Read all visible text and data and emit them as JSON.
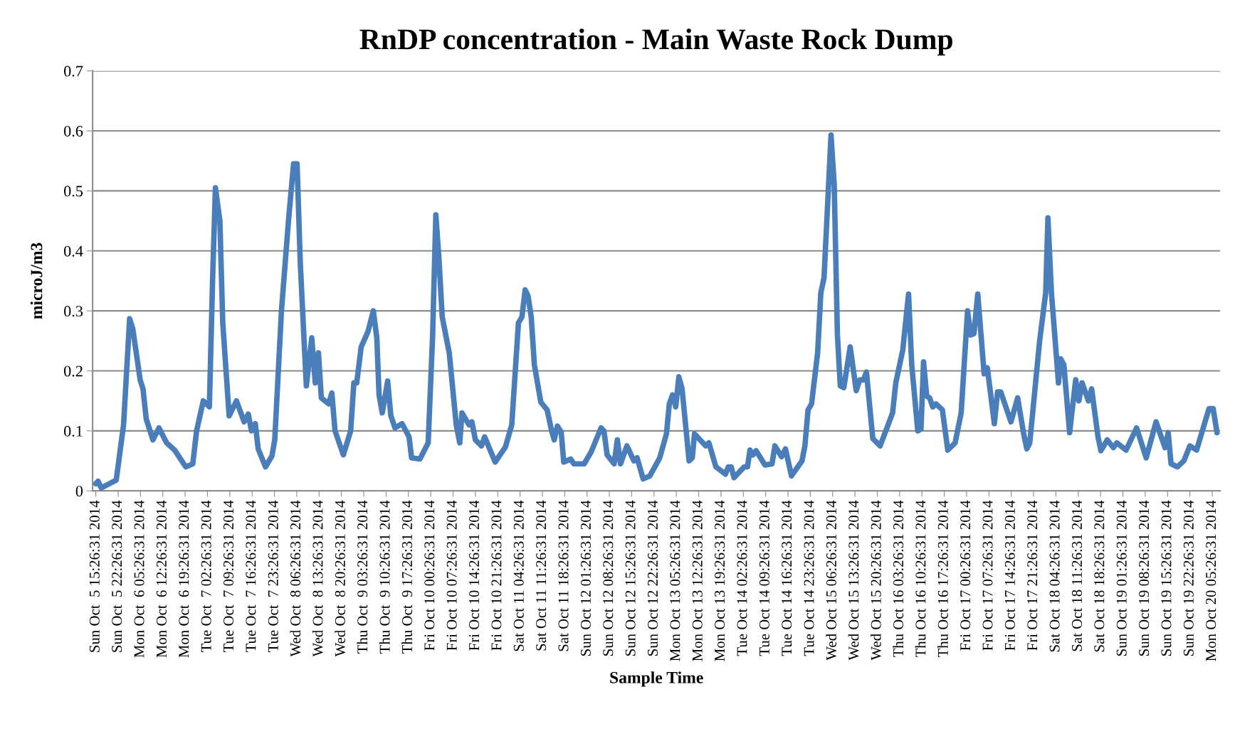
{
  "chart_data": {
    "type": "line",
    "title": "RnDP concentration - Main Waste Rock Dump",
    "xlabel": "Sample Time",
    "ylabel": "microJ/m3",
    "xlim": [
      "2014-10-05T14:26",
      "2014-10-20T07:56"
    ],
    "ylim": [
      0,
      0.7
    ],
    "yticks": [
      0,
      0.1,
      0.2,
      0.3,
      0.4,
      0.5,
      0.6,
      0.7
    ],
    "grid": "y",
    "marker": "none",
    "line_style": "solid",
    "xticks": [
      {
        "value": "2014-10-05T15:26",
        "label": "Sun Oct  5 15:26:31 2014"
      },
      {
        "value": "2014-10-05T22:26",
        "label": "Sun Oct  5 22:26:31 2014"
      },
      {
        "value": "2014-10-06T05:26",
        "label": "Mon Oct  6 05:26:31 2014"
      },
      {
        "value": "2014-10-06T12:26",
        "label": "Mon Oct  6 12:26:31 2014"
      },
      {
        "value": "2014-10-06T19:26",
        "label": "Mon Oct  6 19:26:31 2014"
      },
      {
        "value": "2014-10-07T02:26",
        "label": "Tue Oct  7 02:26:31 2014"
      },
      {
        "value": "2014-10-07T09:26",
        "label": "Tue Oct  7 09:26:31 2014"
      },
      {
        "value": "2014-10-07T16:26",
        "label": "Tue Oct  7 16:26:31 2014"
      },
      {
        "value": "2014-10-07T23:26",
        "label": "Tue Oct  7 23:26:31 2014"
      },
      {
        "value": "2014-10-08T06:26",
        "label": "Wed Oct  8 06:26:31 2014"
      },
      {
        "value": "2014-10-08T13:26",
        "label": "Wed Oct  8 13:26:31 2014"
      },
      {
        "value": "2014-10-08T20:26",
        "label": "Wed Oct  8 20:26:31 2014"
      },
      {
        "value": "2014-10-09T03:26",
        "label": "Thu Oct  9 03:26:31 2014"
      },
      {
        "value": "2014-10-09T10:26",
        "label": "Thu Oct  9 10:26:31 2014"
      },
      {
        "value": "2014-10-09T17:26",
        "label": "Thu Oct  9 17:26:31 2014"
      },
      {
        "value": "2014-10-10T00:26",
        "label": "Fri Oct 10 00:26:31 2014"
      },
      {
        "value": "2014-10-10T07:26",
        "label": "Fri Oct 10 07:26:31 2014"
      },
      {
        "value": "2014-10-10T14:26",
        "label": "Fri Oct 10 14:26:31 2014"
      },
      {
        "value": "2014-10-10T21:26",
        "label": "Fri Oct 10 21:26:31 2014"
      },
      {
        "value": "2014-10-11T04:26",
        "label": "Sat Oct 11 04:26:31 2014"
      },
      {
        "value": "2014-10-11T11:26",
        "label": "Sat Oct 11 11:26:31 2014"
      },
      {
        "value": "2014-10-11T18:26",
        "label": "Sat Oct 11 18:26:31 2014"
      },
      {
        "value": "2014-10-12T01:26",
        "label": "Sun Oct 12 01:26:31 2014"
      },
      {
        "value": "2014-10-12T08:26",
        "label": "Sun Oct 12 08:26:31 2014"
      },
      {
        "value": "2014-10-12T15:26",
        "label": "Sun Oct 12 15:26:31 2014"
      },
      {
        "value": "2014-10-12T22:26",
        "label": "Sun Oct 12 22:26:31 2014"
      },
      {
        "value": "2014-10-13T05:26",
        "label": "Mon Oct 13 05:26:31 2014"
      },
      {
        "value": "2014-10-13T12:26",
        "label": "Mon Oct 13 12:26:31 2014"
      },
      {
        "value": "2014-10-13T19:26",
        "label": "Mon Oct 13 19:26:31 2014"
      },
      {
        "value": "2014-10-14T02:26",
        "label": "Tue Oct 14 02:26:31 2014"
      },
      {
        "value": "2014-10-14T09:26",
        "label": "Tue Oct 14 09:26:31 2014"
      },
      {
        "value": "2014-10-14T16:26",
        "label": "Tue Oct 14 16:26:31 2014"
      },
      {
        "value": "2014-10-14T23:26",
        "label": "Tue Oct 14 23:26:31 2014"
      },
      {
        "value": "2014-10-15T06:26",
        "label": "Wed Oct 15 06:26:31 2014"
      },
      {
        "value": "2014-10-15T13:26",
        "label": "Wed Oct 15 13:26:31 2014"
      },
      {
        "value": "2014-10-15T20:26",
        "label": "Wed Oct 15 20:26:31 2014"
      },
      {
        "value": "2014-10-16T03:26",
        "label": "Thu Oct 16 03:26:31 2014"
      },
      {
        "value": "2014-10-16T10:26",
        "label": "Thu Oct 16 10:26:31 2014"
      },
      {
        "value": "2014-10-16T17:26",
        "label": "Thu Oct 16 17:26:31 2014"
      },
      {
        "value": "2014-10-17T00:26",
        "label": "Fri Oct 17 00:26:31 2014"
      },
      {
        "value": "2014-10-17T07:26",
        "label": "Fri Oct 17 07:26:31 2014"
      },
      {
        "value": "2014-10-17T14:26",
        "label": "Fri Oct 17 14:26:31 2014"
      },
      {
        "value": "2014-10-17T21:26",
        "label": "Fri Oct 17 21:26:31 2014"
      },
      {
        "value": "2014-10-18T04:26",
        "label": "Sat Oct 18 04:26:31 2014"
      },
      {
        "value": "2014-10-18T11:26",
        "label": "Sat Oct 18 11:26:31 2014"
      },
      {
        "value": "2014-10-18T18:26",
        "label": "Sat Oct 18 18:26:31 2014"
      },
      {
        "value": "2014-10-19T01:26",
        "label": "Sun Oct 19 01:26:31 2014"
      },
      {
        "value": "2014-10-19T08:26",
        "label": "Sun Oct 19 08:26:31 2014"
      },
      {
        "value": "2014-10-19T15:26",
        "label": "Sun Oct 19 15:26:31 2014"
      },
      {
        "value": "2014-10-19T22:26",
        "label": "Sun Oct 19 22:26:31 2014"
      },
      {
        "value": "2014-10-20T05:26",
        "label": "Mon Oct 20 05:26:31 2014"
      }
    ],
    "series": [
      {
        "color": "#4a7ebb",
        "x": [
          "2014-10-05T15:26",
          "2014-10-05T16:08",
          "2014-10-05T17:08",
          "2014-10-05T21:50",
          "2014-10-06T00:08",
          "2014-10-06T02:02",
          "2014-10-06T03:02",
          "2014-10-06T05:20",
          "2014-10-06T06:14",
          "2014-10-06T07:14",
          "2014-10-06T09:20",
          "2014-10-06T11:14",
          "2014-10-06T13:38",
          "2014-10-06T16:08",
          "2014-10-06T19:38",
          "2014-10-06T21:50",
          "2014-10-06T23:02",
          "2014-10-07T01:08",
          "2014-10-07T03:02",
          "2014-10-07T04:02",
          "2014-10-07T04:56",
          "2014-10-07T06:20",
          "2014-10-07T07:14",
          "2014-10-07T09:14",
          "2014-10-07T11:32",
          "2014-10-07T13:56",
          "2014-10-07T15:14",
          "2014-10-07T16:14",
          "2014-10-07T17:26",
          "2014-10-07T18:20",
          "2014-10-07T20:38",
          "2014-10-07T22:38",
          "2014-10-07T23:32",
          "2014-10-08T01:38",
          "2014-10-08T03:50",
          "2014-10-08T05:26",
          "2014-10-08T06:32",
          "2014-10-08T07:32",
          "2014-10-08T09:26",
          "2014-10-08T11:08",
          "2014-10-08T12:14",
          "2014-10-08T13:14",
          "2014-10-08T14:08",
          "2014-10-08T16:26",
          "2014-10-08T17:26",
          "2014-10-08T18:26",
          "2014-10-08T21:02",
          "2014-10-08T23:20",
          "2014-10-09T00:20",
          "2014-10-09T01:14",
          "2014-10-09T02:38",
          "2014-10-09T04:44",
          "2014-10-09T06:26",
          "2014-10-09T07:32",
          "2014-10-09T08:14",
          "2014-10-09T09:14",
          "2014-10-09T10:56",
          "2014-10-09T11:56",
          "2014-10-09T13:14",
          "2014-10-09T15:26",
          "2014-10-09T17:38",
          "2014-10-09T18:26",
          "2014-10-09T21:02",
          "2014-10-09T23:38",
          "2014-10-10T01:02",
          "2014-10-10T02:02",
          "2014-10-10T03:02",
          "2014-10-10T04:02",
          "2014-10-10T06:14",
          "2014-10-10T08:26",
          "2014-10-10T09:32",
          "2014-10-10T10:14",
          "2014-10-10T12:26",
          "2014-10-10T13:20",
          "2014-10-10T14:26",
          "2014-10-10T16:20",
          "2014-10-10T17:20",
          "2014-10-10T20:38",
          "2014-10-10T23:50",
          "2014-10-11T01:50",
          "2014-10-11T03:56",
          "2014-10-11T05:02",
          "2014-10-11T06:02",
          "2014-10-11T06:56",
          "2014-10-11T07:56",
          "2014-10-11T08:56",
          "2014-10-11T10:56",
          "2014-10-11T12:56",
          "2014-10-11T14:20",
          "2014-10-11T15:08",
          "2014-10-11T16:08",
          "2014-10-11T17:20",
          "2014-10-11T18:08",
          "2014-10-11T20:20",
          "2014-10-11T21:20",
          "2014-10-12T00:32",
          "2014-10-12T02:44",
          "2014-10-12T05:50",
          "2014-10-12T06:44",
          "2014-10-12T07:44",
          "2014-10-12T09:56",
          "2014-10-12T10:56",
          "2014-10-12T11:56",
          "2014-10-12T13:56",
          "2014-10-12T16:08",
          "2014-10-12T17:08",
          "2014-10-12T19:02",
          "2014-10-12T21:08",
          "2014-10-13T00:14",
          "2014-10-13T02:20",
          "2014-10-13T03:14",
          "2014-10-13T04:14",
          "2014-10-13T05:14",
          "2014-10-13T06:14",
          "2014-10-13T07:14",
          "2014-10-13T09:26",
          "2014-10-13T10:26",
          "2014-10-13T11:08",
          "2014-10-13T14:38",
          "2014-10-13T15:38",
          "2014-10-13T17:50",
          "2014-10-13T20:50",
          "2014-10-13T21:44",
          "2014-10-13T22:38",
          "2014-10-13T23:32",
          "2014-10-14T02:44",
          "2014-10-14T03:44",
          "2014-10-14T04:32",
          "2014-10-14T05:26",
          "2014-10-14T06:26",
          "2014-10-14T09:14",
          "2014-10-14T11:26",
          "2014-10-14T12:20",
          "2014-10-14T14:26",
          "2014-10-14T15:38",
          "2014-10-14T17:32",
          "2014-10-14T20:50",
          "2014-10-14T21:44",
          "2014-10-14T22:44",
          "2014-10-14T23:50",
          "2014-10-15T01:44",
          "2014-10-15T02:44",
          "2014-10-15T03:44",
          "2014-10-15T05:56",
          "2014-10-15T06:56",
          "2014-10-15T07:56",
          "2014-10-15T08:50",
          "2014-10-15T09:56",
          "2014-10-15T11:56",
          "2014-10-15T13:50",
          "2014-10-15T14:56",
          "2014-10-15T16:08",
          "2014-10-15T17:02",
          "2014-10-15T19:02",
          "2014-10-15T21:20",
          "2014-10-16T01:14",
          "2014-10-16T02:14",
          "2014-10-16T04:26",
          "2014-10-16T06:14",
          "2014-10-16T07:14",
          "2014-10-16T09:08",
          "2014-10-16T10:08",
          "2014-10-16T10:56",
          "2014-10-16T11:56",
          "2014-10-16T12:50",
          "2014-10-16T13:50",
          "2014-10-16T14:50",
          "2014-10-16T16:50",
          "2014-10-16T18:32",
          "2014-10-16T20:50",
          "2014-10-16T22:44",
          "2014-10-17T00:44",
          "2014-10-17T01:44",
          "2014-10-17T02:44",
          "2014-10-17T03:56",
          "2014-10-17T05:56",
          "2014-10-17T06:56",
          "2014-10-17T09:08",
          "2014-10-17T10:08",
          "2014-10-17T11:08",
          "2014-10-17T14:20",
          "2014-10-17T16:26",
          "2014-10-17T18:20",
          "2014-10-17T19:20",
          "2014-10-17T20:14",
          "2014-10-17T23:20",
          "2014-10-18T01:14",
          "2014-10-18T01:56",
          "2014-10-18T03:02",
          "2014-10-18T05:14",
          "2014-10-18T05:56",
          "2014-10-18T06:56",
          "2014-10-18T08:44",
          "2014-10-18T10:38",
          "2014-10-18T11:38",
          "2014-10-18T12:38",
          "2014-10-18T14:38",
          "2014-10-18T15:38",
          "2014-10-18T17:38",
          "2014-10-18T18:32",
          "2014-10-18T20:32",
          "2014-10-18T22:26",
          "2014-10-18T23:32",
          "2014-10-19T02:26",
          "2014-10-19T05:44",
          "2014-10-19T08:44",
          "2014-10-19T11:50",
          "2014-10-19T14:38",
          "2014-10-19T15:38",
          "2014-10-19T16:32",
          "2014-10-19T18:32",
          "2014-10-19T20:32",
          "2014-10-19T22:26",
          "2014-10-20T00:32",
          "2014-10-20T04:26",
          "2014-10-20T05:44",
          "2014-10-20T06:56"
        ],
        "values": [
          0.012,
          0.016,
          0.005,
          0.018,
          0.11,
          0.287,
          0.27,
          0.185,
          0.17,
          0.12,
          0.085,
          0.105,
          0.08,
          0.068,
          0.04,
          0.045,
          0.1,
          0.15,
          0.14,
          0.35,
          0.505,
          0.45,
          0.28,
          0.125,
          0.15,
          0.115,
          0.128,
          0.1,
          0.112,
          0.07,
          0.04,
          0.058,
          0.085,
          0.3,
          0.45,
          0.545,
          0.545,
          0.38,
          0.175,
          0.255,
          0.18,
          0.23,
          0.155,
          0.145,
          0.163,
          0.1,
          0.06,
          0.1,
          0.18,
          0.18,
          0.24,
          0.265,
          0.3,
          0.255,
          0.16,
          0.13,
          0.183,
          0.125,
          0.105,
          0.112,
          0.09,
          0.055,
          0.053,
          0.08,
          0.26,
          0.46,
          0.385,
          0.29,
          0.23,
          0.11,
          0.08,
          0.13,
          0.11,
          0.115,
          0.085,
          0.075,
          0.09,
          0.048,
          0.073,
          0.11,
          0.28,
          0.29,
          0.335,
          0.325,
          0.29,
          0.21,
          0.148,
          0.135,
          0.1,
          0.085,
          0.108,
          0.098,
          0.048,
          0.053,
          0.045,
          0.045,
          0.065,
          0.105,
          0.1,
          0.06,
          0.045,
          0.085,
          0.045,
          0.075,
          0.05,
          0.055,
          0.02,
          0.025,
          0.055,
          0.095,
          0.145,
          0.16,
          0.14,
          0.19,
          0.17,
          0.05,
          0.055,
          0.095,
          0.075,
          0.08,
          0.04,
          0.028,
          0.04,
          0.04,
          0.022,
          0.04,
          0.04,
          0.068,
          0.06,
          0.067,
          0.043,
          0.045,
          0.075,
          0.057,
          0.07,
          0.025,
          0.05,
          0.075,
          0.135,
          0.145,
          0.23,
          0.33,
          0.355,
          0.593,
          0.51,
          0.26,
          0.175,
          0.172,
          0.24,
          0.167,
          0.185,
          0.185,
          0.198,
          0.087,
          0.075,
          0.13,
          0.18,
          0.235,
          0.328,
          0.21,
          0.1,
          0.103,
          0.215,
          0.158,
          0.155,
          0.14,
          0.145,
          0.135,
          0.068,
          0.08,
          0.13,
          0.3,
          0.26,
          0.262,
          0.328,
          0.195,
          0.205,
          0.112,
          0.165,
          0.165,
          0.115,
          0.155,
          0.095,
          0.07,
          0.08,
          0.25,
          0.33,
          0.455,
          0.33,
          0.18,
          0.22,
          0.21,
          0.097,
          0.185,
          0.15,
          0.18,
          0.15,
          0.17,
          0.09,
          0.067,
          0.085,
          0.072,
          0.08,
          0.068,
          0.105,
          0.055,
          0.115,
          0.072,
          0.097,
          0.045,
          0.04,
          0.05,
          0.075,
          0.068,
          0.137,
          0.137,
          0.097
        ]
      }
    ]
  }
}
